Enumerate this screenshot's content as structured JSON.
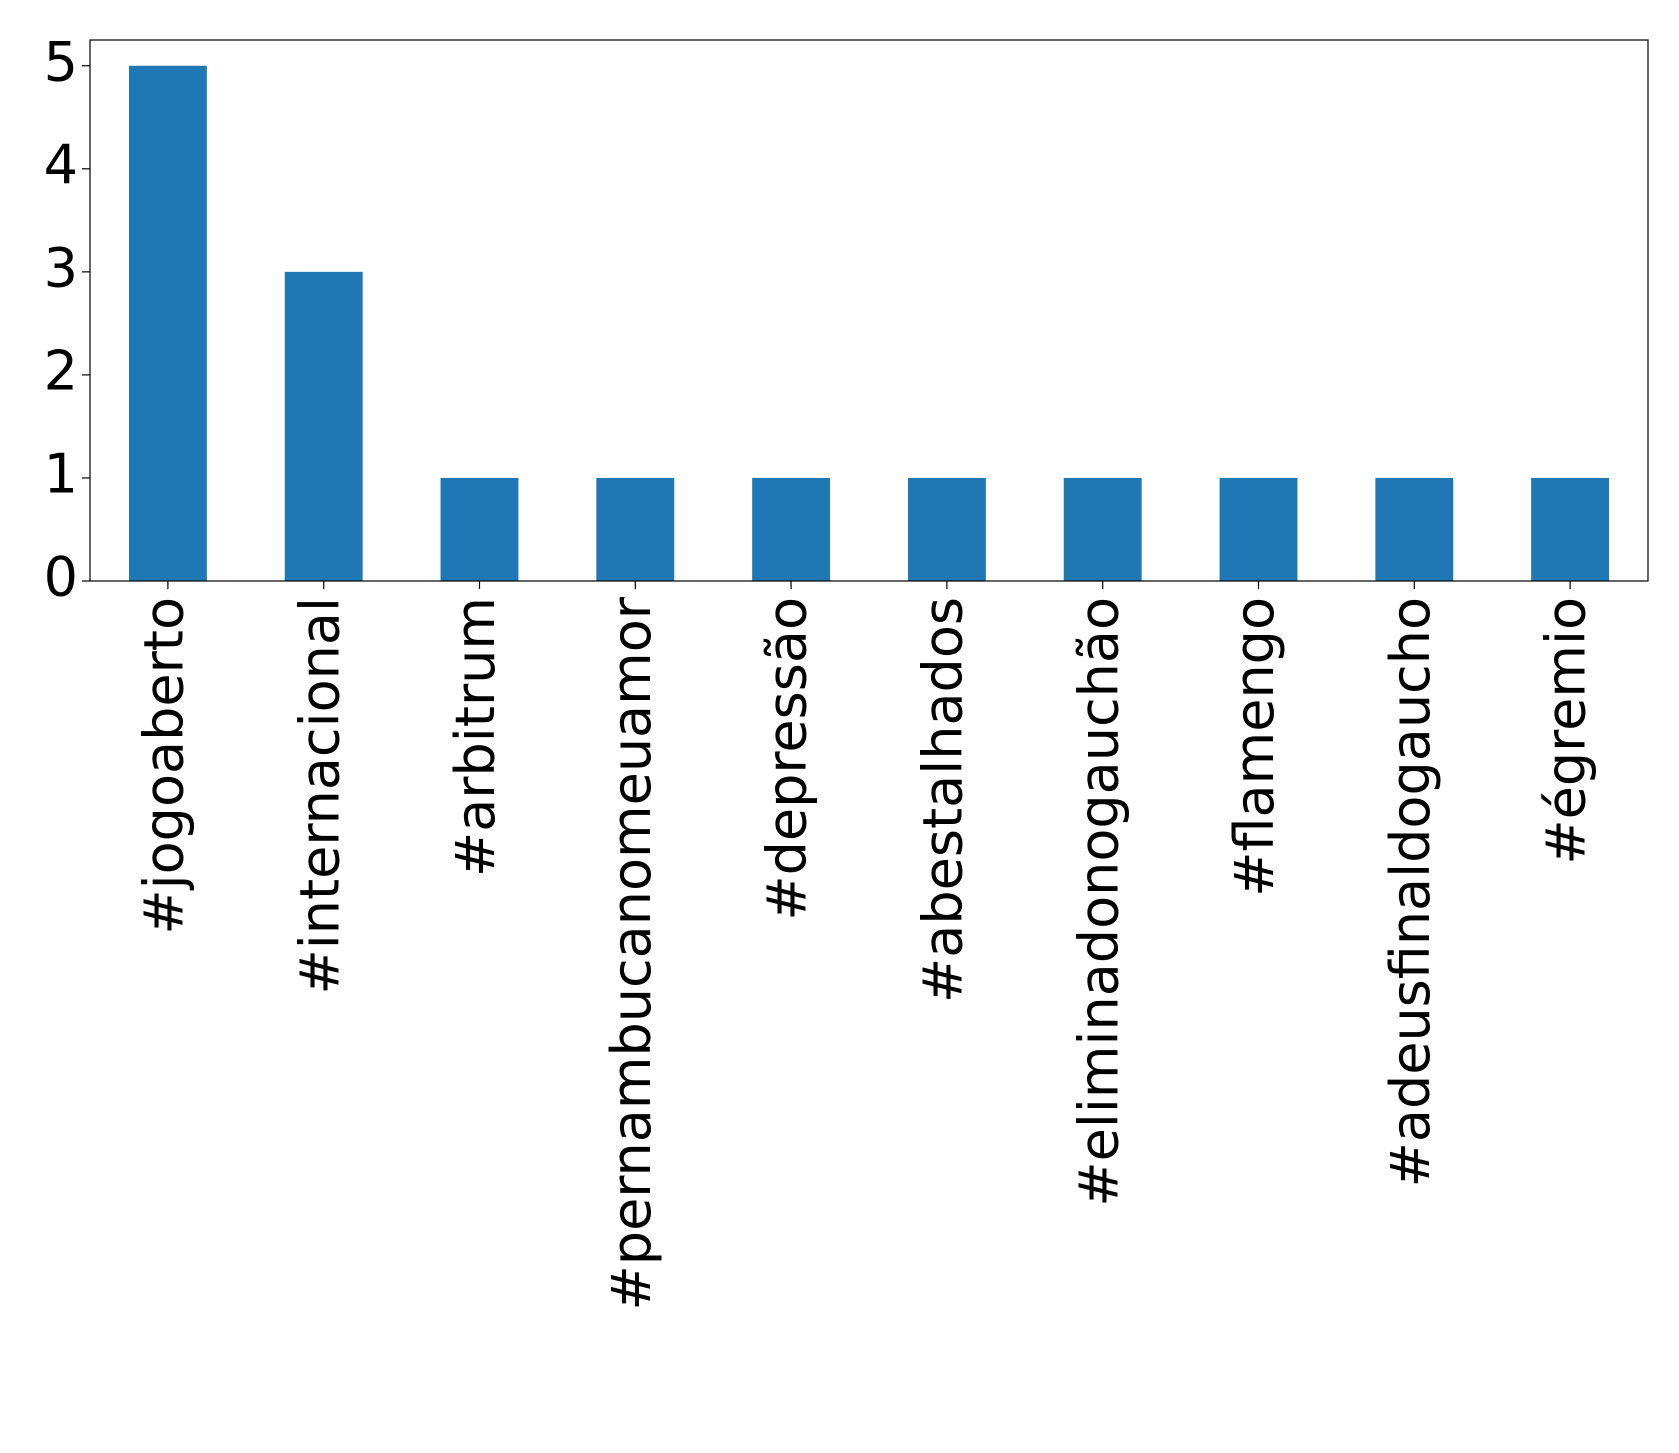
{
  "chart_data": {
    "type": "bar",
    "categories": [
      "#jogoaberto",
      "#internacional",
      "#arbitrum",
      "#pernambucanomeuamor",
      "#depressão",
      "#abestalhados",
      "#eliminadonogauchão",
      "#flamengo",
      "#adeusfinaldogaucho",
      "#égremio"
    ],
    "values": [
      5,
      3,
      1,
      1,
      1,
      1,
      1,
      1,
      1,
      1
    ],
    "color": "#1f77b4",
    "ylim": [
      0,
      5.25
    ],
    "yticks": [
      0,
      1,
      2,
      3,
      4,
      5
    ],
    "grid": false
  }
}
